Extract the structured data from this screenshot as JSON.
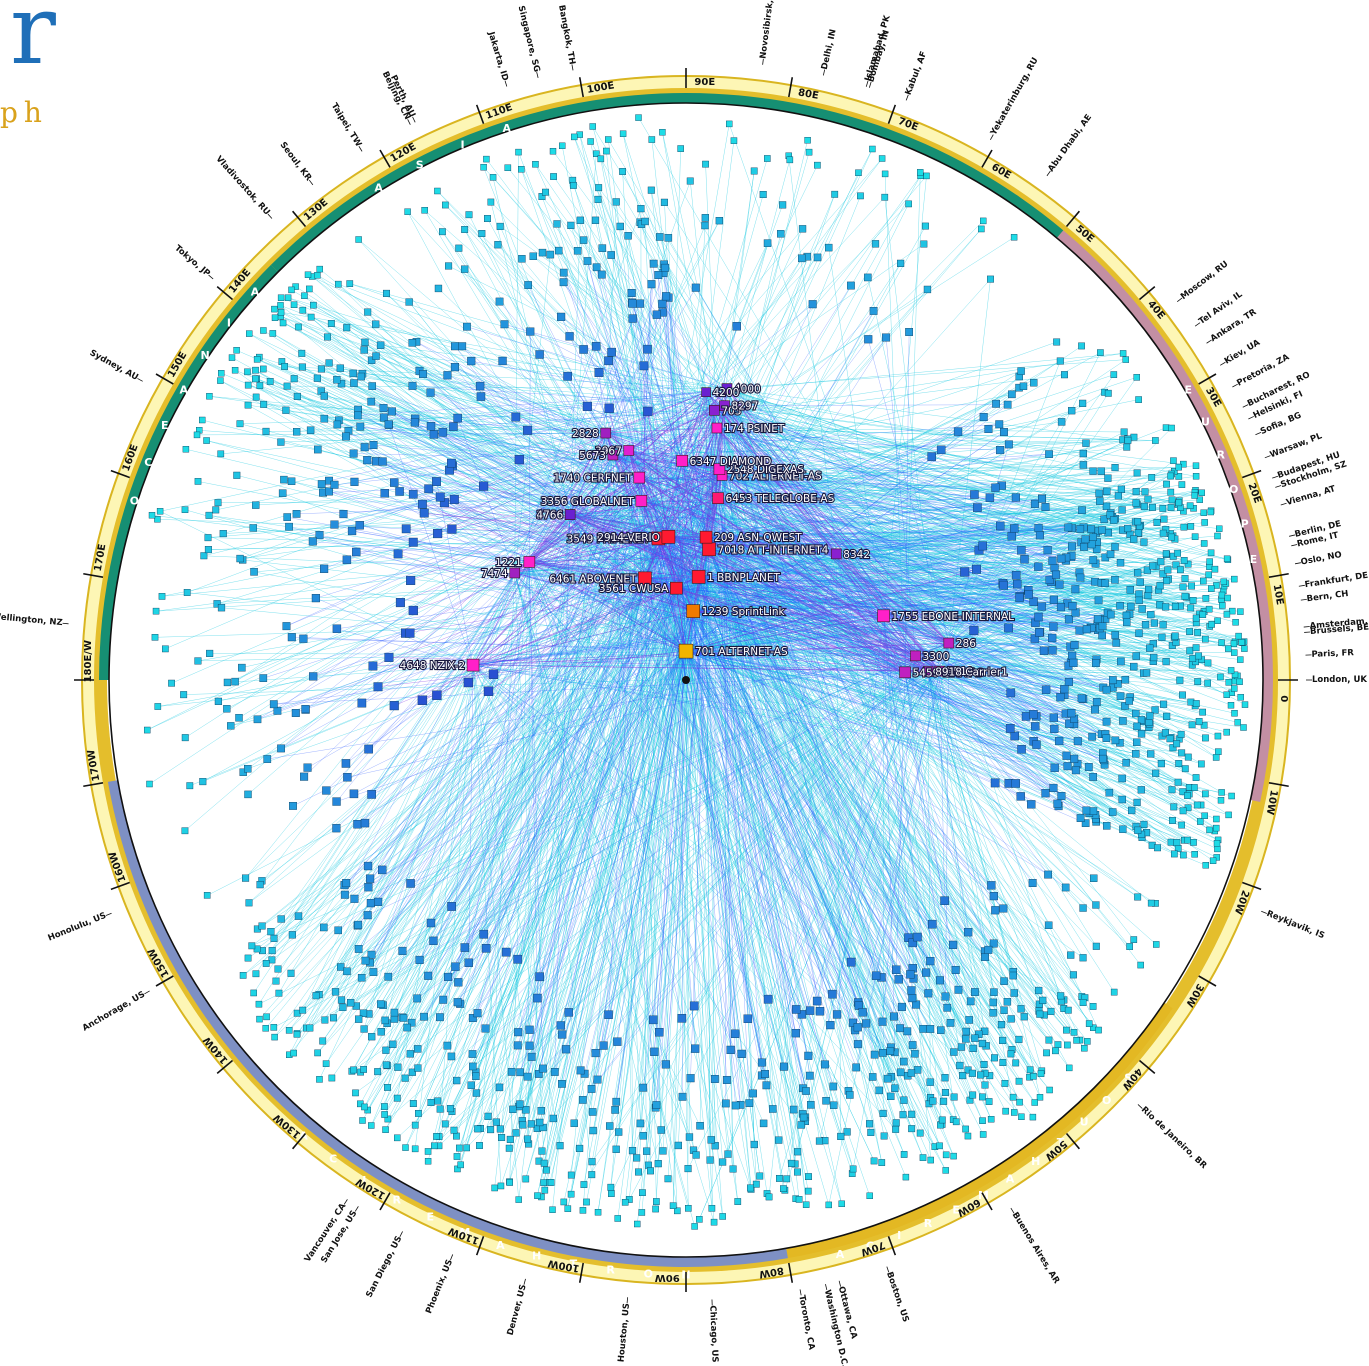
{
  "logo": {
    "letter": "r",
    "subtext": "ph"
  },
  "colors": {
    "ring_outer": "#fdf6b5",
    "ring_border": "#d9b520",
    "ring_gold": "#e4be2c",
    "asia": "#168f73",
    "europe": "#c38fa3",
    "namerica": "#7e90c4",
    "samerica": "#e3b823",
    "oceania": "#168f73",
    "edge_cyan": "#18c8e0",
    "edge_blue": "#2f5cff",
    "edge_purple": "#7a28e0",
    "center_node": "#f2a900"
  },
  "regions": [
    {
      "key": "asia",
      "letters": [
        "A",
        "S",
        "I",
        "A"
      ]
    },
    {
      "key": "europe",
      "letters": [
        "E",
        "U",
        "R",
        "O",
        "P",
        "E"
      ]
    },
    {
      "key": "namerica",
      "letters": [
        "N",
        "O",
        "R",
        "T",
        "H",
        "A",
        "M",
        "E",
        "R",
        "I",
        "C",
        "A"
      ]
    },
    {
      "key": "samerica",
      "letters": [
        "S",
        "O",
        "U",
        "T",
        "H",
        "A",
        "M",
        "E",
        "R",
        "I",
        "C",
        "A"
      ]
    },
    {
      "key": "oceania",
      "letters": [
        "O",
        "C",
        "E",
        "A",
        "N",
        "I",
        "A"
      ]
    }
  ],
  "longitudes": [
    {
      "label": "0",
      "lon": 0
    },
    {
      "label": "10E",
      "lon": 10
    },
    {
      "label": "20E",
      "lon": 20
    },
    {
      "label": "30E",
      "lon": 30
    },
    {
      "label": "40E",
      "lon": 40
    },
    {
      "label": "50E",
      "lon": 50
    },
    {
      "label": "60E",
      "lon": 60
    },
    {
      "label": "70E",
      "lon": 70
    },
    {
      "label": "80E",
      "lon": 80
    },
    {
      "label": "90E",
      "lon": 90
    },
    {
      "label": "100E",
      "lon": 100
    },
    {
      "label": "110E",
      "lon": 110
    },
    {
      "label": "120E",
      "lon": 120
    },
    {
      "label": "130E",
      "lon": 130
    },
    {
      "label": "140E",
      "lon": 140
    },
    {
      "label": "150E",
      "lon": 150
    },
    {
      "label": "160E",
      "lon": 160
    },
    {
      "label": "170E",
      "lon": 170
    },
    {
      "label": "180E/W",
      "lon": 180
    },
    {
      "label": "170W",
      "lon": -170
    },
    {
      "label": "160W",
      "lon": -160
    },
    {
      "label": "150W",
      "lon": -150
    },
    {
      "label": "140W",
      "lon": -140
    },
    {
      "label": "130W",
      "lon": -130
    },
    {
      "label": "120W",
      "lon": -120
    },
    {
      "label": "110W",
      "lon": -110
    },
    {
      "label": "100W",
      "lon": -100
    },
    {
      "label": "90W",
      "lon": -90
    },
    {
      "label": "80W",
      "lon": -80
    },
    {
      "label": "70W",
      "lon": -70
    },
    {
      "label": "60W",
      "lon": -60
    },
    {
      "label": "50W",
      "lon": -50
    },
    {
      "label": "40W",
      "lon": -40
    },
    {
      "label": "30W",
      "lon": -30
    },
    {
      "label": "20W",
      "lon": -20
    },
    {
      "label": "10W",
      "lon": -10
    }
  ],
  "cities": [
    {
      "name": "London, UK",
      "lon": 0
    },
    {
      "name": "Paris, FR",
      "lon": 2.3
    },
    {
      "name": "Amsterdam, NL",
      "lon": 4.9
    },
    {
      "name": "Brussels, BE",
      "lon": 4.4
    },
    {
      "name": "Bern, CH",
      "lon": 7.4
    },
    {
      "name": "Frankfurt, DE",
      "lon": 8.7
    },
    {
      "name": "Oslo, NO",
      "lon": 10.8
    },
    {
      "name": "Rome, IT",
      "lon": 12.5
    },
    {
      "name": "Berlin, DE",
      "lon": 13.4
    },
    {
      "name": "Vienna, AT",
      "lon": 16.4
    },
    {
      "name": "Stockholm, SZ",
      "lon": 18.1
    },
    {
      "name": "Budapest, HU",
      "lon": 19.0
    },
    {
      "name": "Warsaw, PL",
      "lon": 21.0
    },
    {
      "name": "Sofia, BG",
      "lon": 23.3
    },
    {
      "name": "Helsinki, FI",
      "lon": 24.9
    },
    {
      "name": "Bucharest, RO",
      "lon": 26.1
    },
    {
      "name": "Pretoria, ZA",
      "lon": 28.2
    },
    {
      "name": "Kiev, UA",
      "lon": 30.5
    },
    {
      "name": "Ankara, TR",
      "lon": 32.9
    },
    {
      "name": "Tel Aviv, IL",
      "lon": 34.8
    },
    {
      "name": "Moscow, RU",
      "lon": 37.6
    },
    {
      "name": "Abu Dhabi, AE",
      "lon": 54.4
    },
    {
      "name": "Yekaterinburg, RU",
      "lon": 60.6
    },
    {
      "name": "Kabul, AF",
      "lon": 69.2
    },
    {
      "name": "Islamabad, PK",
      "lon": 73.1
    },
    {
      "name": "Bombay, IN",
      "lon": 72.8
    },
    {
      "name": "Delhi, IN",
      "lon": 77.2
    },
    {
      "name": "Novosibirsk, RU",
      "lon": 82.9
    },
    {
      "name": "Bangkok, TH",
      "lon": 100.5
    },
    {
      "name": "Singapore, SG",
      "lon": 103.8
    },
    {
      "name": "Jakarta, ID",
      "lon": 106.8
    },
    {
      "name": "Perth, AU",
      "lon": 115.9
    },
    {
      "name": "Beijing, CN",
      "lon": 116.4
    },
    {
      "name": "Taipei, TW",
      "lon": 121.5
    },
    {
      "name": "Seoul, KR",
      "lon": 127.0
    },
    {
      "name": "Vladivostok, RU",
      "lon": 131.9
    },
    {
      "name": "Tokyo, JP",
      "lon": 139.7
    },
    {
      "name": "Sydney, AU",
      "lon": 151.2
    },
    {
      "name": "Wellington, NZ",
      "lon": 174.8
    },
    {
      "name": "Honolulu, US",
      "lon": -157.9
    },
    {
      "name": "Anchorage, US",
      "lon": -149.9
    },
    {
      "name": "Vancouver, CA",
      "lon": -123.1
    },
    {
      "name": "San Jose, US",
      "lon": -121.9
    },
    {
      "name": "San Diego, US",
      "lon": -117.2
    },
    {
      "name": "Phoenix, US",
      "lon": -112.1
    },
    {
      "name": "Denver, US",
      "lon": -105.0
    },
    {
      "name": "Houston, US",
      "lon": -95.4
    },
    {
      "name": "Chicago, US",
      "lon": -87.6
    },
    {
      "name": "Toronto, CA",
      "lon": -79.4
    },
    {
      "name": "Washington D.C., US",
      "lon": -77.0
    },
    {
      "name": "Ottawa, CA",
      "lon": -75.7
    },
    {
      "name": "Boston, US",
      "lon": -71.1
    },
    {
      "name": "Buenos Aires, AR",
      "lon": -58.4
    },
    {
      "name": "Rio de Janeiro, BR",
      "lon": -43.2
    },
    {
      "name": "Reykjavik, IS",
      "lon": -21.9
    }
  ],
  "as_nodes": [
    {
      "label": "701 ALTERNET-AS",
      "lon": 90,
      "r": 0.05,
      "color": "#f0b400",
      "size": 14
    },
    {
      "label": "1239 SprintLink",
      "lon": 84,
      "r": 0.12,
      "color": "#f07a00",
      "size": 13
    },
    {
      "label": "3561 CWUSA",
      "lon": 96,
      "r": 0.16,
      "color": "#ff1a30",
      "size": 12
    },
    {
      "label": "1 BBNPLANET",
      "lon": 83,
      "r": 0.18,
      "color": "#ff1a30",
      "size": 13
    },
    {
      "label": "6461 ABOVENET",
      "lon": 112,
      "r": 0.19,
      "color": "#ff1a30",
      "size": 13
    },
    {
      "label": "7018 ATT-INTERNET4",
      "lon": 80,
      "r": 0.23,
      "color": "#ff1a30",
      "size": 13
    },
    {
      "label": "209 ASN-QWEST",
      "lon": 82,
      "r": 0.25,
      "color": "#ff1a30",
      "size": 12
    },
    {
      "label": "3549 PRIMENET",
      "lon": 101,
      "r": 0.25,
      "color": "#ff1a30",
      "size": 13
    },
    {
      "label": "2914 VERIO",
      "lon": 97,
      "r": 0.25,
      "color": "#ff1a30",
      "size": 13
    },
    {
      "label": "6453 TELEGLOBE-AS",
      "lon": 80,
      "r": 0.32,
      "color": "#ff1a70",
      "size": 11
    },
    {
      "label": "3356 GLOBALNET",
      "lon": 104,
      "r": 0.32,
      "color": "#ff20c8",
      "size": 11
    },
    {
      "label": "702 ALTERNET-AS",
      "lon": 80,
      "r": 0.36,
      "color": "#ff20c8",
      "size": 10
    },
    {
      "label": "1740 CERFNET",
      "lon": 103,
      "r": 0.36,
      "color": "#ff20c8",
      "size": 11
    },
    {
      "label": "2548 DIGEXAS",
      "lon": 81,
      "r": 0.37,
      "color": "#ff20c8",
      "size": 11
    },
    {
      "label": "6347 DIAMOND",
      "lon": 91,
      "r": 0.38,
      "color": "#ff20c8",
      "size": 11
    },
    {
      "label": "174 PSINET",
      "lon": 83,
      "r": 0.44,
      "color": "#ff20c8",
      "size": 10
    },
    {
      "label": "3967",
      "lon": 104,
      "r": 0.41,
      "color": "#e020d0",
      "size": 10
    },
    {
      "label": "5673",
      "lon": 108,
      "r": 0.41,
      "color": "#c020c0",
      "size": 10
    },
    {
      "label": "2828",
      "lon": 108,
      "r": 0.45,
      "color": "#a020c0",
      "size": 10
    },
    {
      "label": "703",
      "lon": 84,
      "r": 0.47,
      "color": "#8a20d0",
      "size": 10
    },
    {
      "label": "8297",
      "lon": 82,
      "r": 0.48,
      "color": "#8a20d0",
      "size": 10
    },
    {
      "label": "4000",
      "lon": 82,
      "r": 0.51,
      "color": "#6a20d0",
      "size": 10
    },
    {
      "label": "4200",
      "lon": 86,
      "r": 0.5,
      "color": "#6a20d0",
      "size": 9
    },
    {
      "label": "4648 NZIX-2",
      "lon": 176,
      "r": 0.37,
      "color": "#ff20c8",
      "size": 12
    },
    {
      "label": "7474",
      "lon": 148,
      "r": 0.35,
      "color": "#a020c0",
      "size": 10
    },
    {
      "label": "1221",
      "lon": 143,
      "r": 0.34,
      "color": "#ff20c8",
      "size": 11
    },
    {
      "label": "3786",
      "lon": 125,
      "r": 0.35,
      "color": "#6a20d0",
      "size": 10
    },
    {
      "label": "4766",
      "lon": 125,
      "r": 0.35,
      "color": "#6a20d0",
      "size": 10
    },
    {
      "label": "8342",
      "lon": 40,
      "r": 0.34,
      "color": "#8a20d0",
      "size": 10
    },
    {
      "label": "1755 EBONE-INTERNAL",
      "lon": 18,
      "r": 0.36,
      "color": "#ff20c8",
      "size": 12
    },
    {
      "label": "286",
      "lon": 8,
      "r": 0.46,
      "color": "#c020c0",
      "size": 10
    },
    {
      "label": "3300",
      "lon": 6,
      "r": 0.4,
      "color": "#c020c0",
      "size": 10
    },
    {
      "label": "5459 LINX-AS",
      "lon": 2,
      "r": 0.38,
      "color": "#c020c0",
      "size": 11
    },
    {
      "label": "5519",
      "lon": 2,
      "r": 0.44,
      "color": "#c020c0",
      "size": 10
    },
    {
      "label": "8918 Carrier1",
      "lon": 2,
      "r": 0.42,
      "color": "#c020c0",
      "size": 10
    }
  ]
}
